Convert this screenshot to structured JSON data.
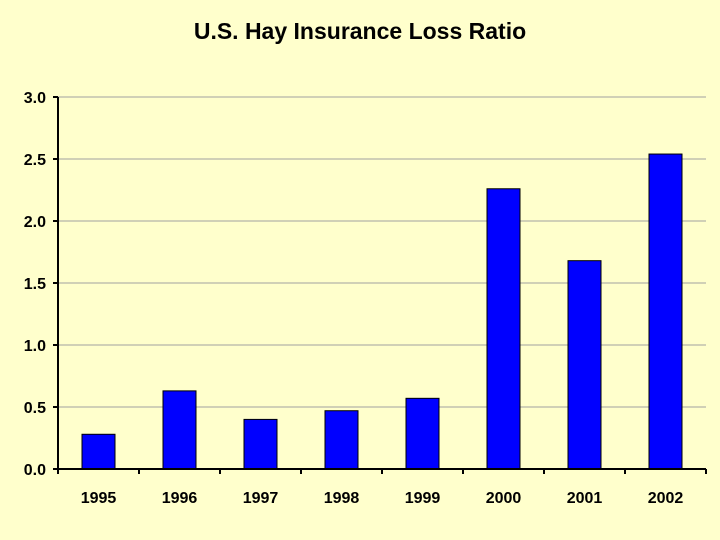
{
  "colors": {
    "background": "#ffffcc",
    "bar": "#0000ff",
    "bar_outline": "#000000",
    "gridline": "#a0a0a0",
    "axis": "#000000"
  },
  "chart_data": {
    "type": "bar",
    "title": "U.S. Hay Insurance Loss Ratio",
    "xlabel": "",
    "ylabel": "",
    "categories": [
      "1995",
      "1996",
      "1997",
      "1998",
      "1999",
      "2000",
      "2001",
      "2002"
    ],
    "values": [
      0.28,
      0.63,
      0.4,
      0.47,
      0.57,
      2.26,
      1.68,
      2.54
    ],
    "ylim": [
      0,
      3.0
    ],
    "yticks": [
      "0.0",
      "0.5",
      "1.0",
      "1.5",
      "2.0",
      "2.5",
      "3.0"
    ],
    "grid": true,
    "legend": "none"
  }
}
